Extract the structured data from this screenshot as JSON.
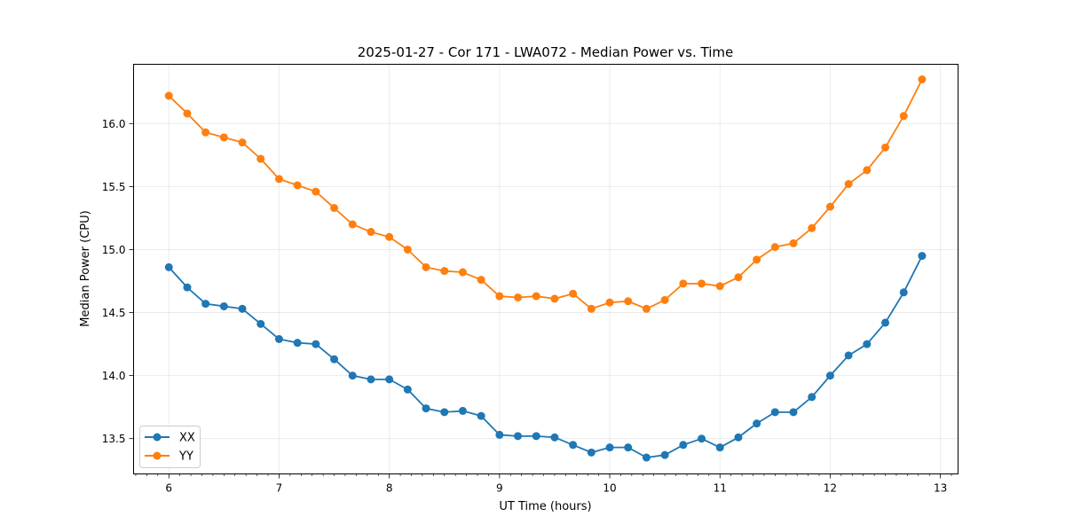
{
  "chart_data": {
    "type": "line",
    "title": "2025-01-27 - Cor 171 - LWA072 - Median Power vs. Time",
    "xlabel": "UT Time (hours)",
    "ylabel": "Median Power (CPU)",
    "xlim": [
      5.68,
      13.16
    ],
    "ylim": [
      13.22,
      16.47
    ],
    "xticks": [
      6,
      7,
      8,
      9,
      10,
      11,
      12,
      13
    ],
    "yticks": [
      13.5,
      14.0,
      14.5,
      15.0,
      15.5,
      16.0
    ],
    "ytick_labels": [
      "13.5",
      "14.0",
      "14.5",
      "15.0",
      "15.5",
      "16.0"
    ],
    "x_minor_step": 0.1,
    "grid": true,
    "legend_position": "lower-left",
    "x": [
      6.0,
      6.1667,
      6.3333,
      6.5,
      6.6667,
      6.8333,
      7.0,
      7.1667,
      7.3333,
      7.5,
      7.6667,
      7.8333,
      8.0,
      8.1667,
      8.3333,
      8.5,
      8.6667,
      8.8333,
      9.0,
      9.1667,
      9.3333,
      9.5,
      9.6667,
      9.8333,
      10.0,
      10.1667,
      10.3333,
      10.5,
      10.6667,
      10.8333,
      11.0,
      11.1667,
      11.3333,
      11.5,
      11.6667,
      11.8333,
      12.0,
      12.1667,
      12.3333,
      12.5,
      12.6667,
      12.8333
    ],
    "series": [
      {
        "name": "XX",
        "color": "#1f77b4",
        "values": [
          14.86,
          14.7,
          14.57,
          14.55,
          14.53,
          14.41,
          14.29,
          14.26,
          14.25,
          14.13,
          14.0,
          13.97,
          13.97,
          13.89,
          13.74,
          13.71,
          13.72,
          13.68,
          13.53,
          13.52,
          13.52,
          13.51,
          13.45,
          13.39,
          13.43,
          13.43,
          13.35,
          13.37,
          13.45,
          13.5,
          13.43,
          13.51,
          13.62,
          13.71,
          13.71,
          13.83,
          14.0,
          14.16,
          14.25,
          14.42,
          14.66,
          14.95
        ]
      },
      {
        "name": "YY",
        "color": "#ff7f0e",
        "values": [
          16.22,
          16.08,
          15.93,
          15.89,
          15.85,
          15.72,
          15.56,
          15.51,
          15.46,
          15.33,
          15.2,
          15.14,
          15.1,
          15.0,
          14.86,
          14.83,
          14.82,
          14.76,
          14.63,
          14.62,
          14.63,
          14.61,
          14.65,
          14.53,
          14.58,
          14.59,
          14.53,
          14.6,
          14.73,
          14.73,
          14.71,
          14.78,
          14.92,
          15.02,
          15.05,
          15.17,
          15.34,
          15.52,
          15.63,
          15.81,
          16.06,
          16.35
        ]
      }
    ]
  }
}
